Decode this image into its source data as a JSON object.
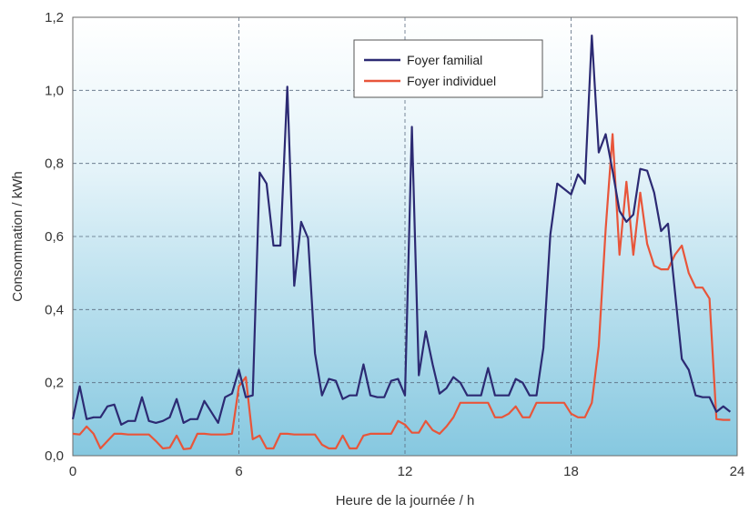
{
  "chart_data": {
    "type": "line",
    "xlabel": "Heure de la journée / h",
    "ylabel": "Consommation / kWh",
    "xlim": [
      0,
      24
    ],
    "ylim": [
      0,
      1.2
    ],
    "xticks": [
      0,
      6,
      12,
      18,
      24
    ],
    "xtick_labels": [
      "0",
      "6",
      "12",
      "18",
      "24"
    ],
    "yticks": [
      0,
      0.2,
      0.4,
      0.6,
      0.8,
      1.0,
      1.2
    ],
    "ytick_labels": [
      "0,0",
      "0,2",
      "0,4",
      "0,6",
      "0,8",
      "1,0",
      "1,2"
    ],
    "grid": "dashed at x ticks 6, 12, 18 and all y ticks",
    "legend_position": "top-center",
    "series": [
      {
        "name": "Foyer familial",
        "color": "#2c2a73",
        "x": [
          0,
          0.25,
          0.5,
          0.75,
          1.0,
          1.25,
          1.5,
          1.75,
          2.0,
          2.25,
          2.5,
          2.75,
          3.0,
          3.25,
          3.5,
          3.75,
          4.0,
          4.25,
          4.5,
          4.75,
          5.0,
          5.25,
          5.5,
          5.75,
          6.0,
          6.25,
          6.5,
          6.75,
          7.0,
          7.25,
          7.5,
          7.75,
          8.0,
          8.25,
          8.5,
          8.75,
          9.0,
          9.25,
          9.5,
          9.75,
          10.0,
          10.25,
          10.5,
          10.75,
          11.0,
          11.25,
          11.5,
          11.75,
          12.0,
          12.25,
          12.5,
          12.75,
          13.0,
          13.25,
          13.5,
          13.75,
          14.0,
          14.25,
          14.5,
          14.75,
          15.0,
          15.25,
          15.5,
          15.75,
          16.0,
          16.25,
          16.5,
          16.75,
          17.0,
          17.25,
          17.5,
          17.75,
          18.0,
          18.25,
          18.5,
          18.75,
          19.0,
          19.25,
          19.5,
          19.75,
          20.0,
          20.25,
          20.5,
          20.75,
          21.0,
          21.25,
          21.5,
          21.75,
          22.0,
          22.25,
          22.5,
          22.75,
          23.0,
          23.25,
          23.5,
          23.75
        ],
        "values": [
          0.1,
          0.19,
          0.1,
          0.105,
          0.105,
          0.135,
          0.14,
          0.085,
          0.095,
          0.095,
          0.16,
          0.095,
          0.09,
          0.095,
          0.105,
          0.155,
          0.09,
          0.1,
          0.1,
          0.15,
          0.12,
          0.09,
          0.16,
          0.17,
          0.235,
          0.16,
          0.165,
          0.775,
          0.745,
          0.575,
          0.575,
          1.01,
          0.465,
          0.64,
          0.595,
          0.28,
          0.165,
          0.21,
          0.205,
          0.155,
          0.165,
          0.165,
          0.25,
          0.165,
          0.16,
          0.16,
          0.205,
          0.21,
          0.165,
          0.9,
          0.22,
          0.34,
          0.25,
          0.17,
          0.185,
          0.215,
          0.2,
          0.165,
          0.165,
          0.165,
          0.24,
          0.165,
          0.165,
          0.165,
          0.21,
          0.2,
          0.165,
          0.165,
          0.295,
          0.605,
          0.745,
          0.73,
          0.715,
          0.77,
          0.745,
          1.15,
          0.83,
          0.88,
          0.78,
          0.67,
          0.64,
          0.66,
          0.785,
          0.78,
          0.72,
          0.615,
          0.635,
          0.45,
          0.265,
          0.235,
          0.165,
          0.16,
          0.16,
          0.12,
          0.135,
          0.12
        ]
      },
      {
        "name": "Foyer individuel",
        "color": "#e8553a",
        "x": [
          0,
          0.25,
          0.5,
          0.75,
          1.0,
          1.25,
          1.5,
          1.75,
          2.0,
          2.25,
          2.5,
          2.75,
          3.0,
          3.25,
          3.5,
          3.75,
          4.0,
          4.25,
          4.5,
          4.75,
          5.0,
          5.25,
          5.5,
          5.75,
          6.0,
          6.25,
          6.5,
          6.75,
          7.0,
          7.25,
          7.5,
          7.75,
          8.0,
          8.25,
          8.5,
          8.75,
          9.0,
          9.25,
          9.5,
          9.75,
          10.0,
          10.25,
          10.5,
          10.75,
          11.0,
          11.25,
          11.5,
          11.75,
          12.0,
          12.25,
          12.5,
          12.75,
          13.0,
          13.25,
          13.5,
          13.75,
          14.0,
          14.25,
          14.5,
          14.75,
          15.0,
          15.25,
          15.5,
          15.75,
          16.0,
          16.25,
          16.5,
          16.75,
          17.0,
          17.25,
          17.5,
          17.75,
          18.0,
          18.25,
          18.5,
          18.75,
          19.0,
          19.25,
          19.5,
          19.75,
          20.0,
          20.25,
          20.5,
          20.75,
          21.0,
          21.25,
          21.5,
          21.75,
          22.0,
          22.25,
          22.5,
          22.75,
          23.0,
          23.25,
          23.5,
          23.75
        ],
        "values": [
          0.06,
          0.058,
          0.08,
          0.06,
          0.02,
          0.04,
          0.06,
          0.06,
          0.058,
          0.058,
          0.058,
          0.058,
          0.04,
          0.02,
          0.022,
          0.055,
          0.018,
          0.02,
          0.06,
          0.06,
          0.058,
          0.058,
          0.058,
          0.06,
          0.19,
          0.215,
          0.045,
          0.055,
          0.02,
          0.02,
          0.06,
          0.06,
          0.058,
          0.058,
          0.058,
          0.058,
          0.03,
          0.02,
          0.02,
          0.055,
          0.02,
          0.02,
          0.055,
          0.06,
          0.06,
          0.06,
          0.06,
          0.095,
          0.085,
          0.063,
          0.063,
          0.095,
          0.07,
          0.06,
          0.08,
          0.105,
          0.145,
          0.145,
          0.145,
          0.145,
          0.145,
          0.105,
          0.105,
          0.115,
          0.135,
          0.105,
          0.105,
          0.145,
          0.145,
          0.145,
          0.145,
          0.145,
          0.115,
          0.105,
          0.105,
          0.145,
          0.3,
          0.62,
          0.88,
          0.55,
          0.75,
          0.55,
          0.72,
          0.58,
          0.52,
          0.51,
          0.51,
          0.55,
          0.575,
          0.5,
          0.46,
          0.46,
          0.43,
          0.1,
          0.098,
          0.098
        ]
      }
    ]
  }
}
